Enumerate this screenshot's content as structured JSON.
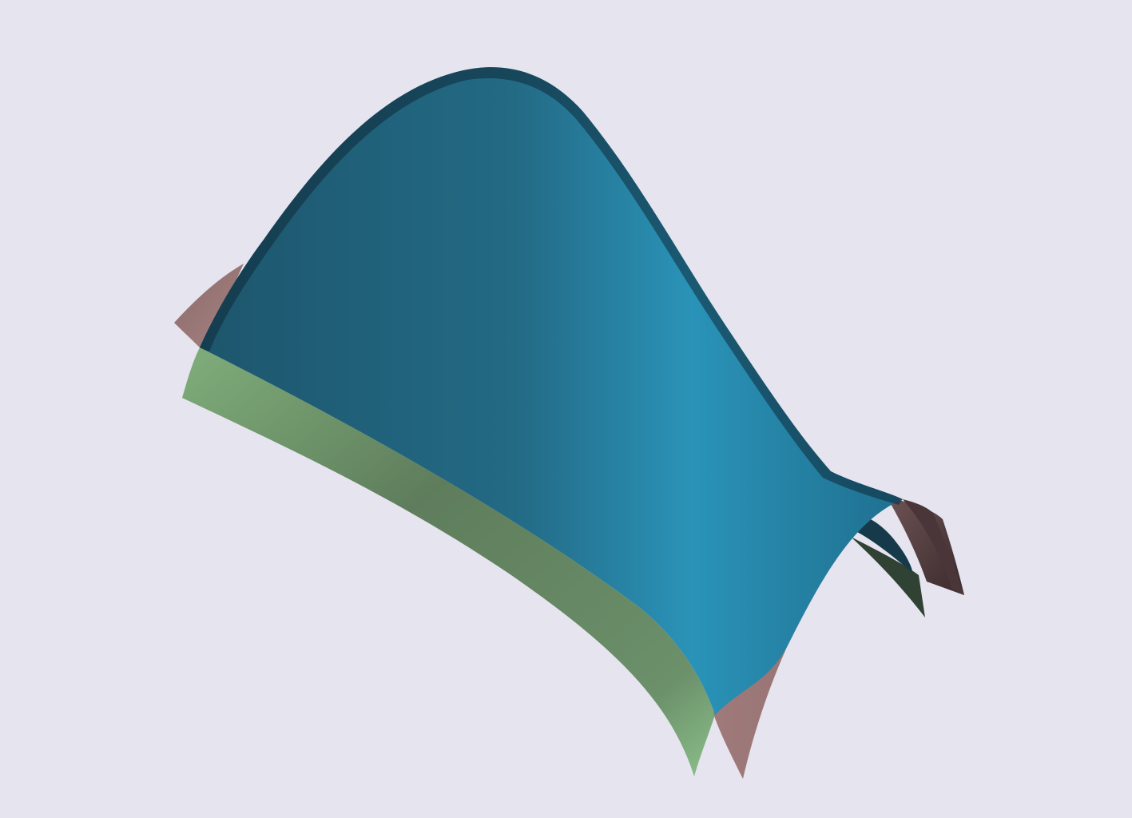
{
  "scene": {
    "background": "#e5e4ef",
    "surfaces": [
      {
        "name": "green-surface",
        "color": "#6a8f66",
        "highlight": "#8fc08a",
        "shadow": "#2e3d2c"
      },
      {
        "name": "pink-surface",
        "color": "#9a7676",
        "highlight": "#a88484",
        "shadow": "#3a2a2c"
      },
      {
        "name": "blue-surface",
        "color": "#226a85",
        "highlight": "#2b97bb",
        "shadow": "#15384a"
      }
    ]
  }
}
